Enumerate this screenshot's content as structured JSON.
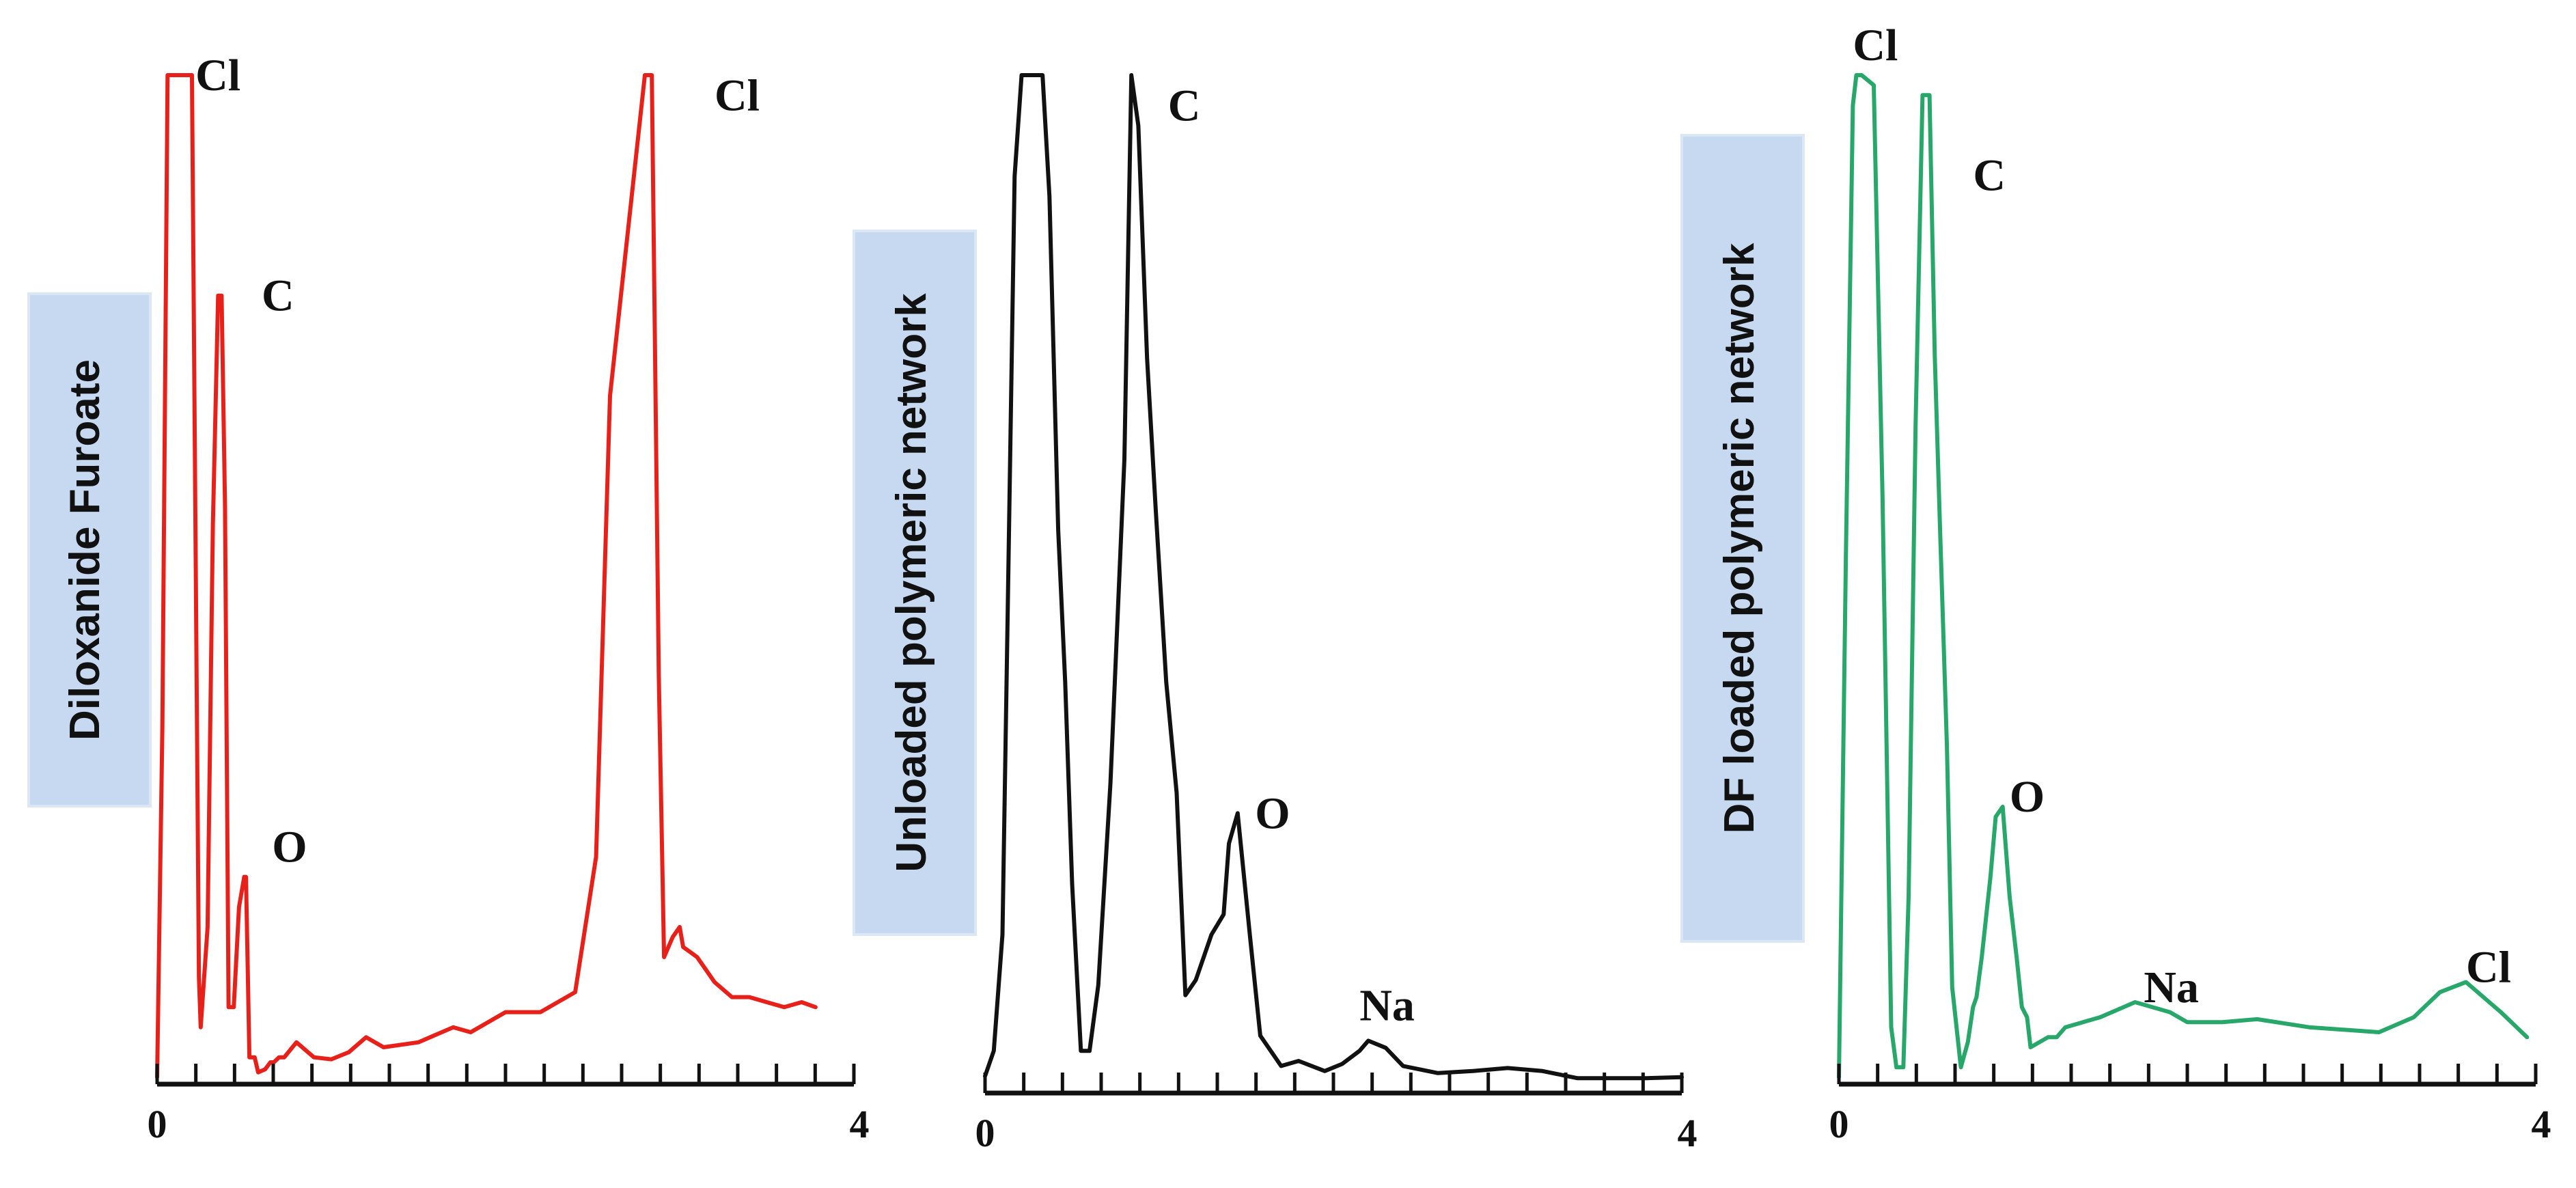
{
  "chart_data": [
    {
      "type": "line",
      "title": "Diloxanide Furoate",
      "xlabel": "",
      "ylabel": "",
      "xlim": [
        0,
        4
      ],
      "x_tick_labels": [
        "0",
        "4"
      ],
      "y_hidden": true,
      "color": "#e8201a",
      "series": [
        {
          "name": "Diloxanide Furoate",
          "x": [
            0.0,
            0.03,
            0.06,
            0.07,
            0.2,
            0.24,
            0.25,
            0.29,
            0.32,
            0.35,
            0.37,
            0.39,
            0.41,
            0.44,
            0.47,
            0.5,
            0.51,
            0.53,
            0.56,
            0.58,
            0.62,
            0.65,
            0.67,
            0.7,
            0.73,
            0.8,
            0.9,
            1.0,
            1.1,
            1.2,
            1.3,
            1.5,
            1.7,
            1.8,
            2.0,
            2.2,
            2.4,
            2.52,
            2.6,
            2.8,
            2.84,
            2.88,
            2.91,
            2.96,
            3.0,
            3.02,
            3.06,
            3.1,
            3.2,
            3.3,
            3.4,
            3.5,
            3.6,
            3.7,
            3.78
          ],
          "y": [
            0.0,
            35.0,
            100.0,
            100.0,
            100.0,
            10.0,
            5.0,
            15.0,
            55.0,
            78.0,
            78.0,
            57.0,
            7.0,
            7.0,
            17.0,
            20.0,
            20.0,
            2.0,
            2.0,
            0.5,
            0.8,
            1.5,
            1.5,
            2.0,
            2.0,
            3.5,
            2.0,
            1.8,
            2.5,
            4.0,
            3.0,
            3.5,
            5.0,
            4.5,
            6.5,
            6.5,
            8.5,
            22.0,
            68.0,
            100.0,
            100.0,
            40.0,
            12.0,
            14.0,
            15.0,
            13.0,
            12.5,
            12.0,
            9.5,
            8.0,
            8.0,
            7.5,
            7.0,
            7.5,
            7.0
          ]
        }
      ],
      "peak_labels": [
        {
          "text": "Cl",
          "x": 0.22,
          "y": 100
        },
        {
          "text": "C",
          "x": 0.6,
          "y": 78
        },
        {
          "text": "O",
          "x": 0.66,
          "y": 23
        },
        {
          "text": "Cl",
          "x": 3.2,
          "y": 98
        }
      ]
    },
    {
      "type": "line",
      "title": "Unloaded polymeric network",
      "xlabel": "",
      "ylabel": "",
      "xlim": [
        0,
        4
      ],
      "x_tick_labels": [
        "0",
        "4"
      ],
      "y_hidden": true,
      "color": "#111111",
      "series": [
        {
          "name": "Unloaded polymeric network",
          "x": [
            0.0,
            0.05,
            0.1,
            0.13,
            0.17,
            0.21,
            0.33,
            0.37,
            0.42,
            0.46,
            0.5,
            0.55,
            0.6,
            0.65,
            0.72,
            0.8,
            0.84,
            0.88,
            0.93,
            0.98,
            1.04,
            1.1,
            1.15,
            1.21,
            1.3,
            1.37,
            1.4,
            1.45,
            1.52,
            1.58,
            1.7,
            1.8,
            1.95,
            2.05,
            2.15,
            2.2,
            2.3,
            2.4,
            2.6,
            2.8,
            3.0,
            3.2,
            3.4,
            3.6,
            3.8,
            4.0
          ],
          "y": [
            1.0,
            3.5,
            15.0,
            47.0,
            90.0,
            100.0,
            100.0,
            88.0,
            55.0,
            40.0,
            20.0,
            3.5,
            3.5,
            10.0,
            30.0,
            62.0,
            100.0,
            95.0,
            72.0,
            57.0,
            40.0,
            29.0,
            9.0,
            10.5,
            15.0,
            17.0,
            24.0,
            27.0,
            15.0,
            5.0,
            2.0,
            2.5,
            1.5,
            2.2,
            3.5,
            4.5,
            3.8,
            2.0,
            1.3,
            1.5,
            1.8,
            1.5,
            0.8,
            0.8,
            0.8,
            0.9
          ]
        }
      ],
      "peak_labels": [
        {
          "text": "C",
          "x": 1.05,
          "y": 97
        },
        {
          "text": "O",
          "x": 1.55,
          "y": 27
        },
        {
          "text": "Na",
          "x": 2.15,
          "y": 8
        }
      ]
    },
    {
      "type": "line",
      "title": "DF loaded polymeric network",
      "xlabel": "",
      "ylabel": "",
      "xlim": [
        0,
        4
      ],
      "x_tick_labels": [
        "0",
        "4"
      ],
      "y_hidden": true,
      "color": "#27a86a",
      "series": [
        {
          "name": "DF loaded polymeric network",
          "x": [
            0.0,
            0.04,
            0.08,
            0.1,
            0.13,
            0.2,
            0.25,
            0.3,
            0.33,
            0.37,
            0.4,
            0.44,
            0.48,
            0.52,
            0.55,
            0.58,
            0.62,
            0.65,
            0.7,
            0.74,
            0.77,
            0.79,
            0.82,
            0.87,
            0.9,
            0.94,
            0.98,
            1.02,
            1.05,
            1.08,
            1.1,
            1.15,
            1.2,
            1.25,
            1.3,
            1.5,
            1.7,
            1.9,
            2.0,
            2.2,
            2.4,
            2.7,
            3.1,
            3.3,
            3.45,
            3.6,
            3.8,
            3.95
          ],
          "y": [
            0.0,
            52.0,
            97.0,
            100.0,
            100.0,
            99.0,
            58.0,
            5.0,
            1.0,
            1.0,
            18.0,
            65.0,
            98.0,
            98.0,
            72.0,
            55.0,
            33.0,
            9.0,
            1.0,
            3.5,
            7.0,
            8.0,
            12.0,
            20.0,
            26.0,
            27.0,
            18.0,
            12.0,
            7.0,
            6.0,
            3.0,
            3.5,
            4.0,
            4.0,
            5.0,
            6.0,
            7.5,
            6.5,
            5.5,
            5.5,
            5.8,
            5.0,
            4.5,
            6.0,
            8.5,
            9.5,
            6.5,
            4.0
          ]
        }
      ],
      "peak_labels": [
        {
          "text": "Cl",
          "x": 0.08,
          "y": 103
        },
        {
          "text": "C",
          "x": 0.77,
          "y": 90
        },
        {
          "text": "O",
          "x": 0.98,
          "y": 28
        },
        {
          "text": "Na",
          "x": 1.75,
          "y": 9
        },
        {
          "text": "Cl",
          "x": 3.6,
          "y": 11
        }
      ]
    }
  ]
}
